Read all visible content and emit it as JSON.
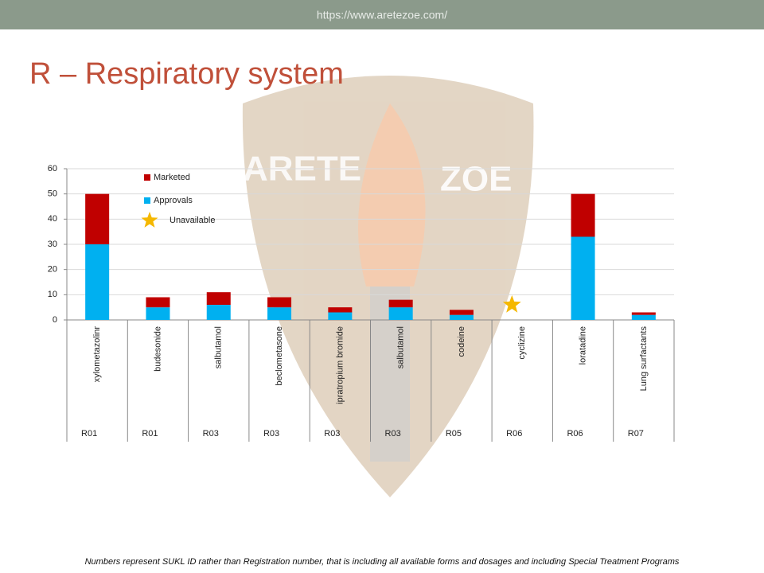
{
  "header": {
    "url": "https://www.aretezoe.com/"
  },
  "title": "R – Respiratory system",
  "watermark": [
    "ARETE",
    "ZOE"
  ],
  "footnote": "Numbers represent SUKL ID rather than Registration number, that is including all available forms and dosages and including Special Treatment Programs",
  "chart_data": {
    "type": "stacked-bar",
    "categories": [
      "xylometazolinr",
      "budesonide",
      "salbutamol",
      "beclometasone",
      "ipratropium bromide",
      "salbutamol",
      "codeine",
      "cyclizine",
      "loratadine",
      "Lung surfactants"
    ],
    "atc_codes": [
      "R01",
      "R01",
      "R03",
      "R03",
      "R03",
      "R03",
      "R05",
      "R06",
      "R06",
      "R07"
    ],
    "series": [
      {
        "name": "Approvals",
        "color": "#00b0f0",
        "values": [
          30,
          5,
          6,
          5,
          3,
          5,
          2,
          null,
          33,
          2
        ]
      },
      {
        "name": "Marketed",
        "color": "#c00000",
        "values": [
          20,
          4,
          5,
          4,
          2,
          3,
          2,
          null,
          17,
          1
        ]
      }
    ],
    "unavailable_label": "Unavailable",
    "unavailable_color": "#f5b800",
    "ylim": [
      0,
      60
    ],
    "yticks": [
      0,
      10,
      20,
      30,
      40,
      50,
      60
    ],
    "grid": true
  }
}
